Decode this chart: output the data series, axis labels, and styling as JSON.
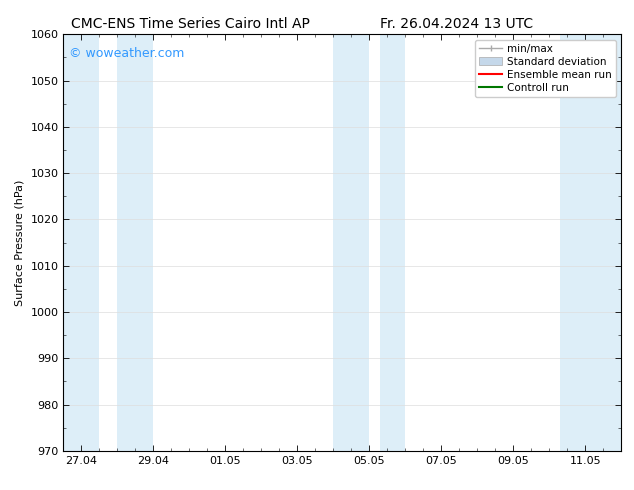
{
  "title_left": "CMC-ENS Time Series Cairo Intl AP",
  "title_right": "Fr. 26.04.2024 13 UTC",
  "ylabel": "Surface Pressure (hPa)",
  "ylim": [
    970,
    1060
  ],
  "yticks": [
    970,
    980,
    990,
    1000,
    1010,
    1020,
    1030,
    1040,
    1050,
    1060
  ],
  "xlim": [
    0,
    15.5
  ],
  "xtick_positions": [
    0.5,
    2.5,
    4.5,
    6.5,
    8.5,
    10.5,
    12.5,
    14.5
  ],
  "xtick_labels": [
    "27.04",
    "29.04",
    "01.05",
    "03.05",
    "05.05",
    "07.05",
    "09.05",
    "11.05"
  ],
  "watermark": "© woweather.com",
  "watermark_color": "#3399ff",
  "bg_color": "#ffffff",
  "plot_bg_color": "#ffffff",
  "shaded_bands": [
    {
      "x_start": 0.0,
      "x_end": 1.0,
      "color": "#ddeef8"
    },
    {
      "x_start": 1.5,
      "x_end": 2.5,
      "color": "#ddeef8"
    },
    {
      "x_start": 7.5,
      "x_end": 8.5,
      "color": "#ddeef8"
    },
    {
      "x_start": 8.8,
      "x_end": 9.5,
      "color": "#ddeef8"
    },
    {
      "x_start": 13.8,
      "x_end": 15.5,
      "color": "#ddeef8"
    }
  ],
  "legend_entries": [
    {
      "label": "min/max",
      "color": "#aaaaaa",
      "lw": 1.0
    },
    {
      "label": "Standard deviation",
      "color": "#c5d8ea",
      "lw": 8
    },
    {
      "label": "Ensemble mean run",
      "color": "#ff0000",
      "lw": 1.5
    },
    {
      "label": "Controll run",
      "color": "#007700",
      "lw": 1.5
    }
  ],
  "font_size_title": 10,
  "font_size_axis": 8,
  "font_size_legend": 7.5,
  "font_size_watermark": 9,
  "grid_color": "#dddddd",
  "tick_color": "#000000",
  "axis_color": "#000000",
  "minor_tick_count": 3
}
